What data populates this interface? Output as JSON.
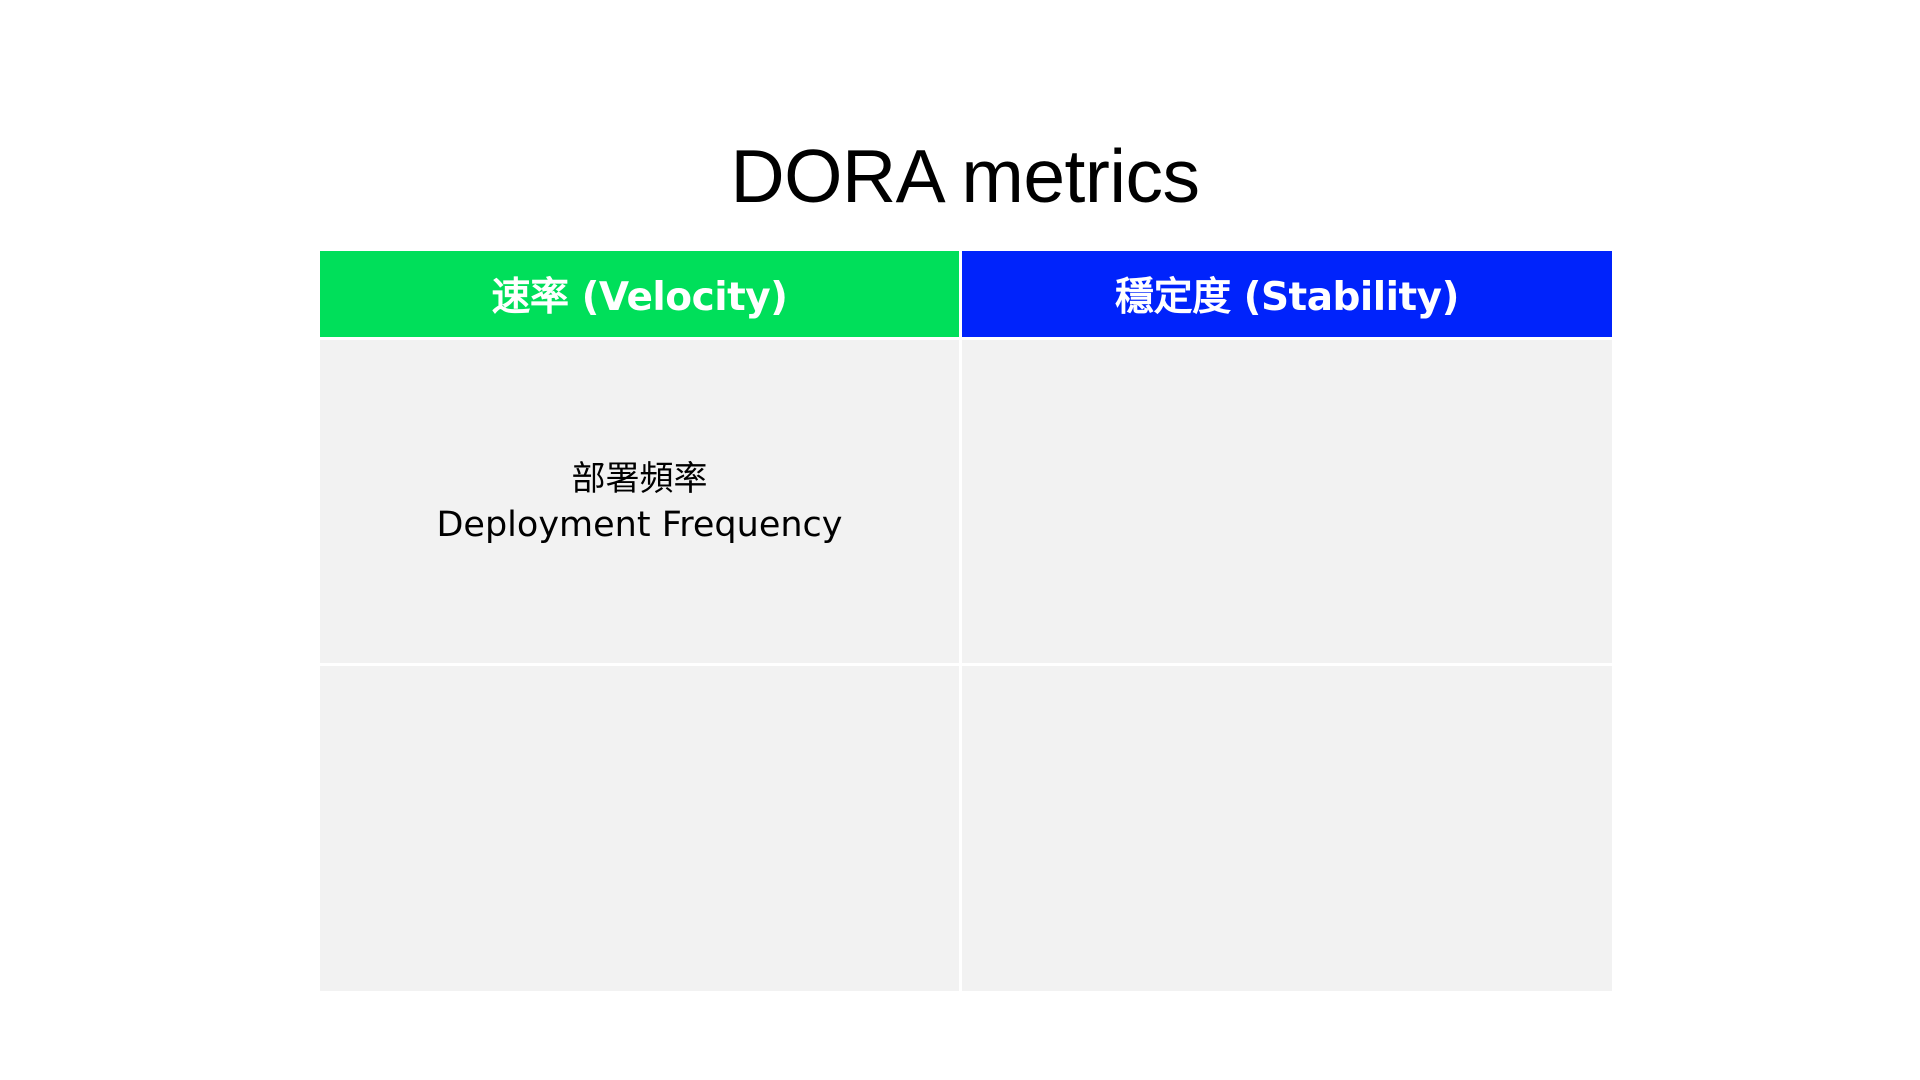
{
  "slide": {
    "title": "DORA metrics"
  },
  "table": {
    "colors": {
      "velocity_header": "#00df5a",
      "stability_header": "#0023fb",
      "cell_background": "#f2f2f2",
      "header_text": "#ffffff"
    },
    "headers": [
      {
        "label": "速率 (Velocity)"
      },
      {
        "label": "穩定度 (Stability)"
      }
    ],
    "cells": [
      {
        "line1": "部署頻率",
        "line2": "Deployment Frequency"
      },
      {
        "line1": "",
        "line2": ""
      },
      {
        "line1": "",
        "line2": ""
      },
      {
        "line1": "",
        "line2": ""
      }
    ]
  }
}
